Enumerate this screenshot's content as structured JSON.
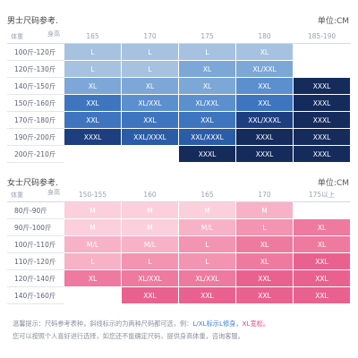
{
  "men": {
    "title": "男士尺码参考.",
    "unit": "单位:CM",
    "corner_weight": "体重",
    "corner_height": "身高",
    "heights": [
      "165",
      "170",
      "175",
      "180",
      "185-190"
    ],
    "rows": [
      {
        "weight": "100斤-120斤",
        "cells": [
          "L",
          "L",
          "L",
          "XL",
          ""
        ]
      },
      {
        "weight": "120斤-130斤",
        "cells": [
          "L",
          "L",
          "XL",
          "XL/XXL",
          ""
        ]
      },
      {
        "weight": "140斤-150斤",
        "cells": [
          "XL",
          "XL",
          "XL",
          "XXL",
          "XXXL"
        ]
      },
      {
        "weight": "150斤-160斤",
        "cells": [
          "XXL",
          "XL/XXL",
          "XL/XXL",
          "XXL",
          "XXXL"
        ]
      },
      {
        "weight": "170斤-180斤",
        "cells": [
          "XXL",
          "XXL",
          "XXL",
          "XXL/XXXL",
          "XXXL"
        ]
      },
      {
        "weight": "190斤-200斤",
        "cells": [
          "XXXL",
          "XXL/XXXL",
          "XXL/XXXL",
          "XXXL",
          "XXXL"
        ]
      },
      {
        "weight": "200斤-210斤",
        "cells": [
          "",
          "",
          "XXXL",
          "XXXL",
          "XXXL"
        ]
      }
    ]
  },
  "women": {
    "title": "女士尺码参考.",
    "unit": "单位:CM",
    "corner_weight": "体重",
    "corner_height": "身高",
    "heights": [
      "150-155",
      "160",
      "165",
      "170",
      "175以上"
    ],
    "rows": [
      {
        "weight": "80斤-90斤",
        "cells": [
          "M",
          "M",
          "M",
          "M",
          ""
        ]
      },
      {
        "weight": "90斤-100斤",
        "cells": [
          "M",
          "M",
          "M/L",
          "L",
          "XL"
        ]
      },
      {
        "weight": "100斤-110斤",
        "cells": [
          "M/L",
          "M/L",
          "L",
          "XL",
          "XL"
        ]
      },
      {
        "weight": "110斤-120斤",
        "cells": [
          "L",
          "L",
          "L",
          "XL",
          "XXL"
        ]
      },
      {
        "weight": "120斤-140斤",
        "cells": [
          "XL",
          "XL/XXL",
          "XL/XXL",
          "XXL",
          "XXL"
        ]
      },
      {
        "weight": "140斤-160斤",
        "cells": [
          "",
          "XXL",
          "XXL",
          "XXL",
          "XXL"
        ]
      }
    ]
  },
  "note": {
    "prefix": "温馨提示：尺码参考表种，斜线标示的为两种尺码都可选，例：",
    "example_tight": "L/XL标示L修身，",
    "example_loose": "XL宽松。",
    "line2": "您可以按照个人喜好进行选择，如您还不能确定尺码，提供身高体重，咨询客服。"
  },
  "colors": {
    "men_scale": [
      "#a6c2e0",
      "#7da7d6",
      "#5c8fce",
      "#3f75be",
      "#2b5ca6",
      "#1d3f80",
      "#142b5c"
    ],
    "women_scale": [
      "#fbd0dc",
      "#f7b2c8",
      "#f294b2",
      "#ee7aa0",
      "#e9628f"
    ]
  }
}
